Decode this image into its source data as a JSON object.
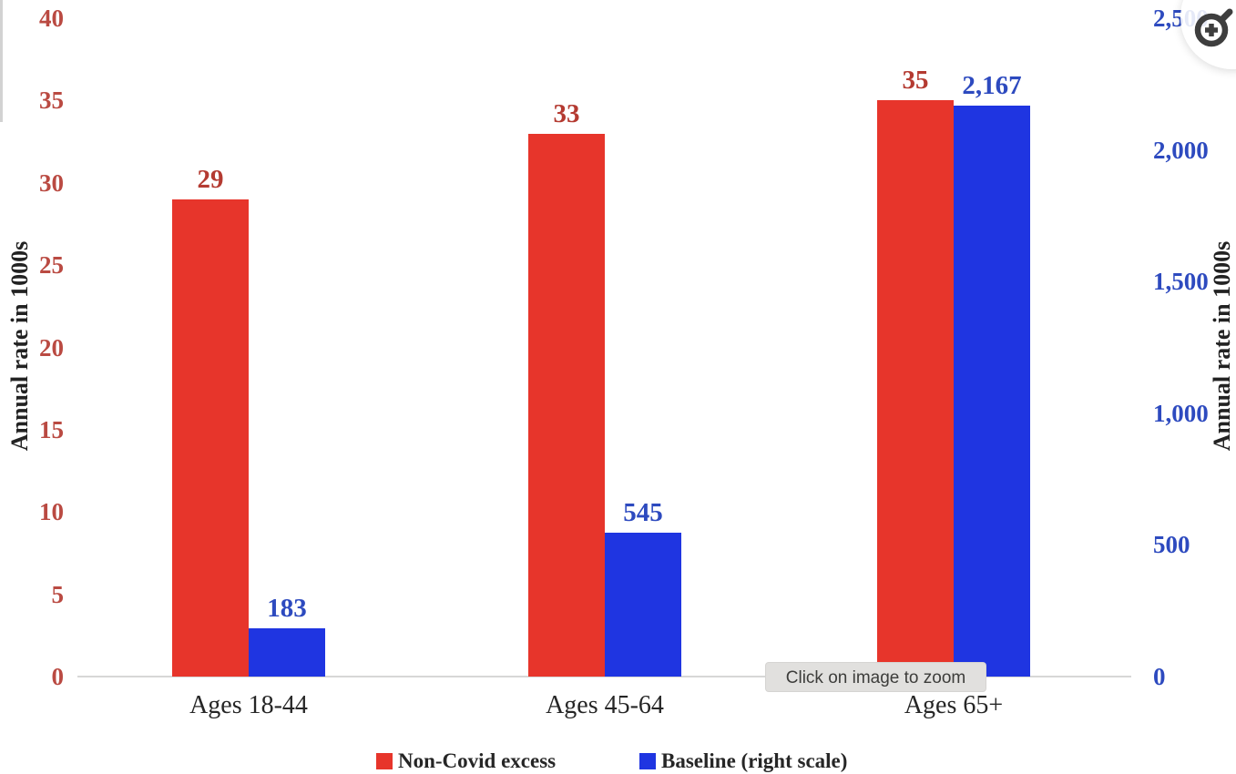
{
  "chart_data": {
    "type": "bar",
    "title": "",
    "categories": [
      "Ages 18-44",
      "Ages 45-64",
      "Ages 65+"
    ],
    "series": [
      {
        "name": "Non-Covid excess",
        "axis": "left",
        "values": [
          29,
          33,
          35
        ],
        "value_labels": [
          "29",
          "33",
          "35"
        ],
        "bar_color": "#e7352b",
        "label_color": "#b43a31"
      },
      {
        "name": "Baseline (right scale)",
        "axis": "right",
        "values": [
          183,
          545,
          2167
        ],
        "value_labels": [
          "183",
          "545",
          "2,167"
        ],
        "bar_color": "#1f35e1",
        "label_color": "#2d4abf"
      }
    ],
    "left_axis": {
      "label": "Annual rate in 1000s",
      "ticks": [
        0,
        5,
        10,
        15,
        20,
        25,
        30,
        35,
        40
      ],
      "tick_labels": [
        "0",
        "5",
        "10",
        "15",
        "20",
        "25",
        "30",
        "35",
        "40"
      ],
      "range": [
        0,
        40
      ],
      "tick_color": "#ba4a42"
    },
    "right_axis": {
      "label": "Annual rate in 1000s",
      "ticks": [
        0,
        500,
        1000,
        1500,
        2000,
        2500
      ],
      "tick_labels": [
        "0",
        "500",
        "1,000",
        "1,500",
        "2,000",
        "2,500"
      ],
      "range": [
        0,
        2500
      ],
      "tick_color": "#2d4abf"
    },
    "legend_position": "bottom",
    "grid": false
  },
  "overlay": {
    "tooltip": "Click on image to zoom",
    "zoom_icon": "magnifier-plus-icon",
    "icon_color": "#3e3e3e"
  }
}
